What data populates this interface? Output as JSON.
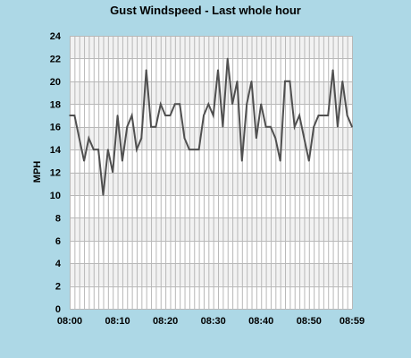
{
  "colors": {
    "page_background": "#add8e6",
    "plot_background": "#ffffff",
    "band_alt": "#f2f2f2",
    "grid": "#b8b8b8",
    "series": "#505050",
    "text": "#000000"
  },
  "chart_data": {
    "type": "line",
    "title": "Gust Windspeed - Last whole hour",
    "xlabel": "",
    "ylabel": "MPH",
    "ylim": [
      0,
      24
    ],
    "yticks": [
      0,
      2,
      4,
      6,
      8,
      10,
      12,
      14,
      16,
      18,
      20,
      22,
      24
    ],
    "xlim": [
      "08:00",
      "08:59"
    ],
    "xtick_labels": [
      "08:00",
      "08:10",
      "08:20",
      "08:30",
      "08:40",
      "08:50",
      "08:59"
    ],
    "grid": true,
    "legend": "none",
    "series": [
      {
        "x": [
          "08:00",
          "08:01",
          "08:02",
          "08:03",
          "08:04",
          "08:05",
          "08:06",
          "08:07",
          "08:08",
          "08:09",
          "08:10",
          "08:11",
          "08:12",
          "08:13",
          "08:14",
          "08:15",
          "08:16",
          "08:17",
          "08:18",
          "08:19",
          "08:20",
          "08:21",
          "08:22",
          "08:23",
          "08:24",
          "08:25",
          "08:26",
          "08:27",
          "08:28",
          "08:29",
          "08:30",
          "08:31",
          "08:32",
          "08:33",
          "08:34",
          "08:35",
          "08:36",
          "08:37",
          "08:38",
          "08:39",
          "08:40",
          "08:41",
          "08:42",
          "08:43",
          "08:44",
          "08:45",
          "08:46",
          "08:47",
          "08:48",
          "08:49",
          "08:50",
          "08:51",
          "08:52",
          "08:53",
          "08:54",
          "08:55",
          "08:56",
          "08:57",
          "08:58",
          "08:59"
        ],
        "values": [
          17,
          17,
          15,
          13,
          15,
          14,
          14,
          10,
          14,
          12,
          17,
          13,
          16,
          17,
          14,
          15,
          21,
          16,
          16,
          18,
          17,
          17,
          18,
          18,
          15,
          14,
          14,
          14,
          17,
          18,
          17,
          21,
          16,
          22,
          18,
          20,
          13,
          18,
          20,
          15,
          18,
          16,
          16,
          15,
          13,
          20,
          20,
          16,
          17,
          15,
          13,
          16,
          17,
          17,
          17,
          21,
          16,
          20,
          17,
          16
        ]
      }
    ]
  }
}
